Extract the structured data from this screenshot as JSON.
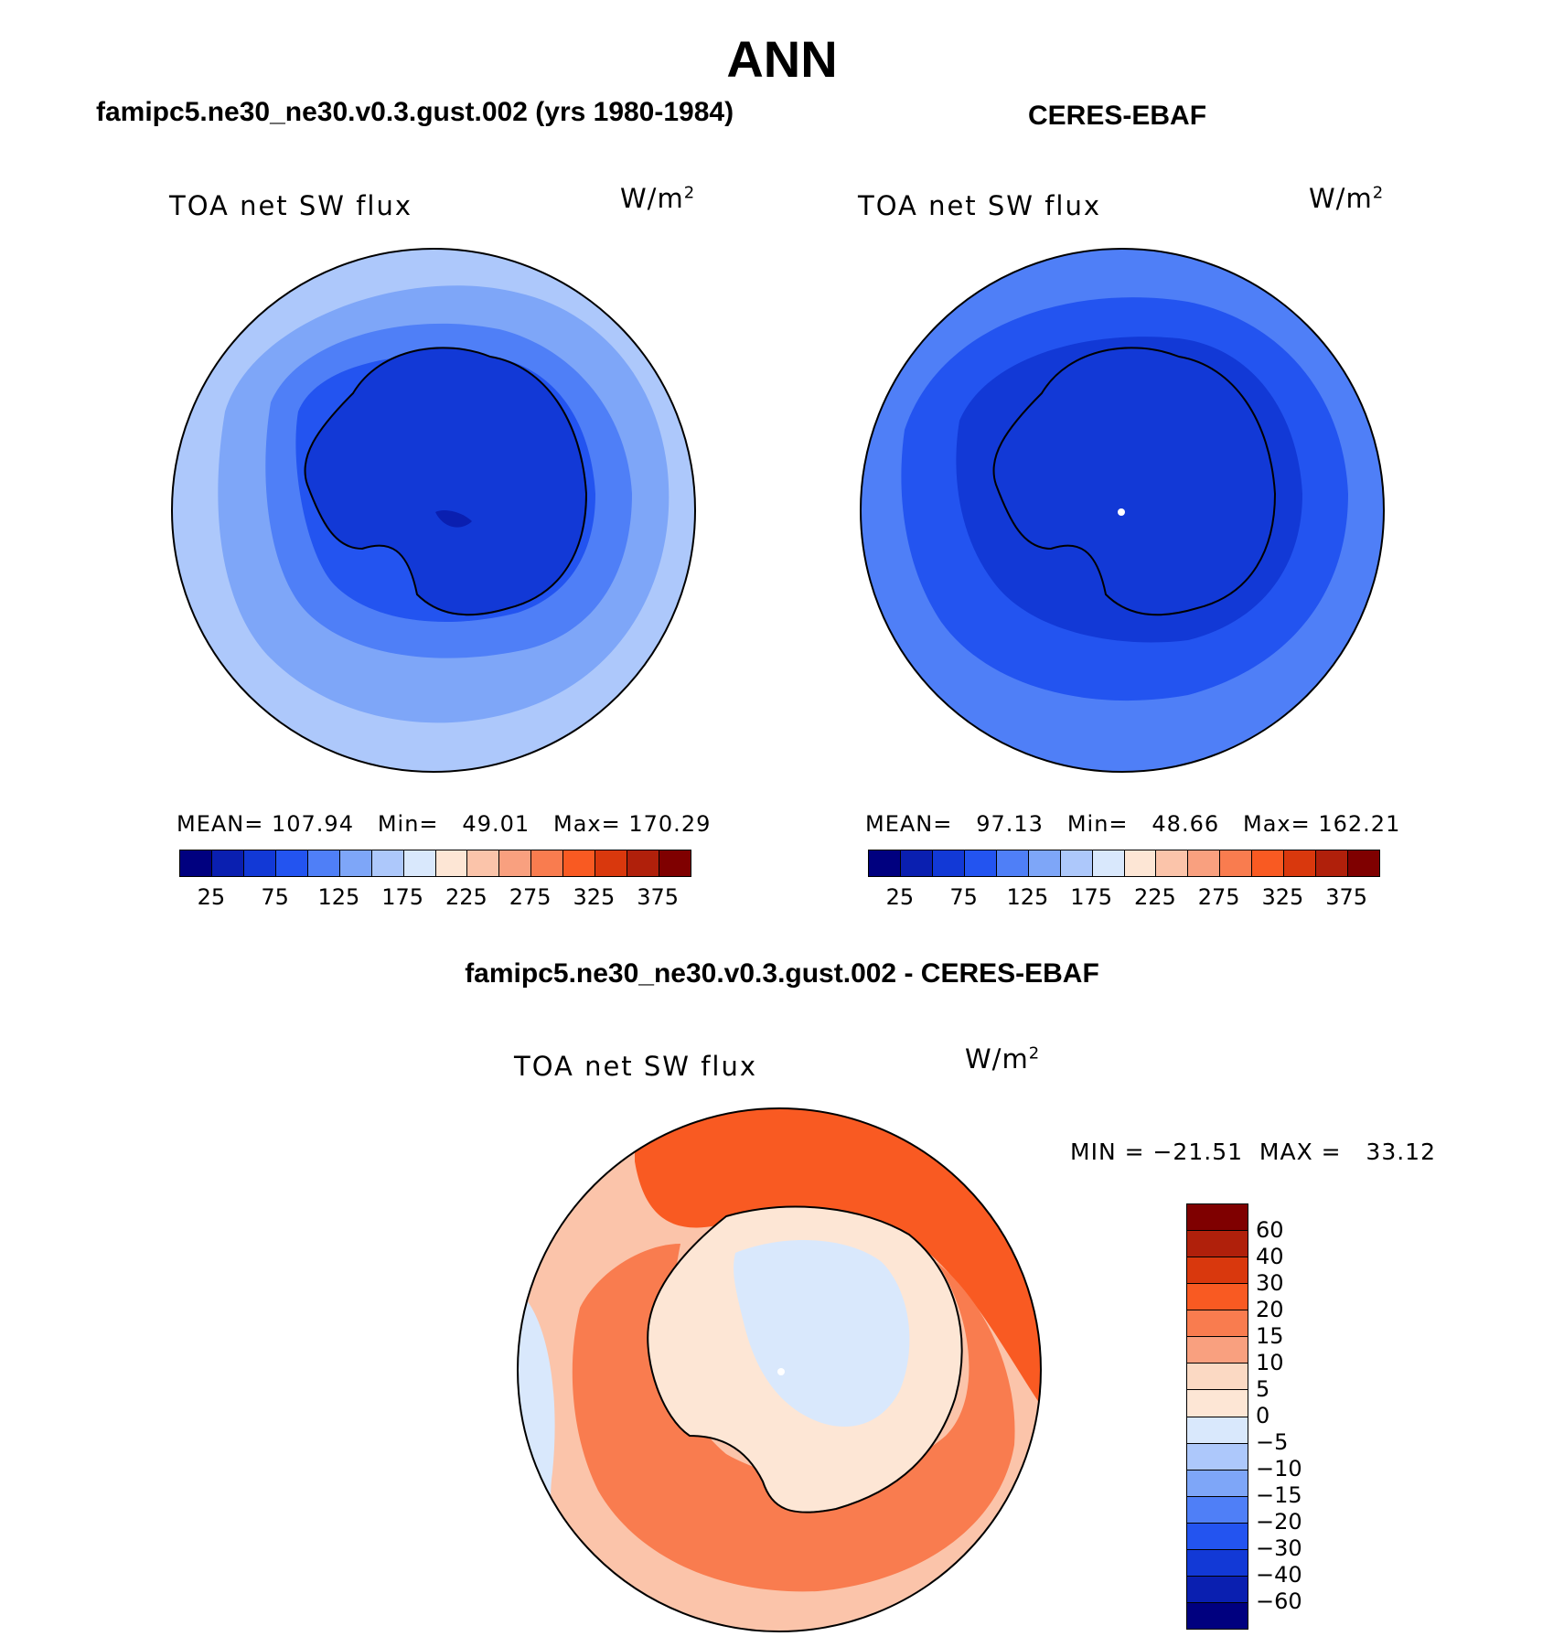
{
  "season": "ANN",
  "panels": [
    {
      "case_title": "famipc5.ne30_ne30.v0.3.gust.002 (yrs 1980-1984)",
      "variable": "TOA net SW flux",
      "unit_base": "W/m",
      "unit_exp": "2",
      "stats": "MEAN= 107.94   Min=   49.01   Max= 170.29",
      "colorbar_ticks": [
        "25",
        "75",
        "125",
        "175",
        "225",
        "275",
        "325",
        "375"
      ],
      "colorbar_colors": [
        "#00007f",
        "#0a1fb0",
        "#1239d6",
        "#2354f0",
        "#4f7ff7",
        "#7ea6f8",
        "#adc8fb",
        "#d9e8fc",
        "#fde6d5",
        "#fbc4aa",
        "#f9a07f",
        "#f97c4f",
        "#f95a22",
        "#d9380d",
        "#b0200b",
        "#7f0000"
      ]
    },
    {
      "case_title": "CERES-EBAF",
      "variable": "TOA net SW flux",
      "unit_base": "W/m",
      "unit_exp": "2",
      "stats": "MEAN=   97.13   Min=   48.66   Max= 162.21",
      "colorbar_ticks": [
        "25",
        "75",
        "125",
        "175",
        "225",
        "275",
        "325",
        "375"
      ],
      "colorbar_colors": [
        "#00007f",
        "#0a1fb0",
        "#1239d6",
        "#2354f0",
        "#4f7ff7",
        "#7ea6f8",
        "#adc8fb",
        "#d9e8fc",
        "#fde6d5",
        "#fbc4aa",
        "#f9a07f",
        "#f97c4f",
        "#f95a22",
        "#d9380d",
        "#b0200b",
        "#7f0000"
      ]
    }
  ],
  "diff": {
    "case_title": "famipc5.ne30_ne30.v0.3.gust.002 - CERES-EBAF",
    "variable": "TOA net SW flux",
    "unit_base": "W/m",
    "unit_exp": "2",
    "minmax": "MIN = −21.51  MAX =   33.12",
    "colorbar_ticks": [
      "60",
      "40",
      "30",
      "20",
      "15",
      "10",
      "5",
      "0",
      "−5",
      "−10",
      "−15",
      "−20",
      "−30",
      "−40",
      "−60"
    ],
    "colorbar_colors": [
      "#7f0000",
      "#b0200b",
      "#d9380d",
      "#f95a22",
      "#f97c4f",
      "#f9a07f",
      "#fbd9c3",
      "#fde6d5",
      "#d9e8fc",
      "#adc8fb",
      "#7ea6f8",
      "#4f7ff7",
      "#2354f0",
      "#1239d6",
      "#0a1fb0",
      "#00007f"
    ]
  }
}
